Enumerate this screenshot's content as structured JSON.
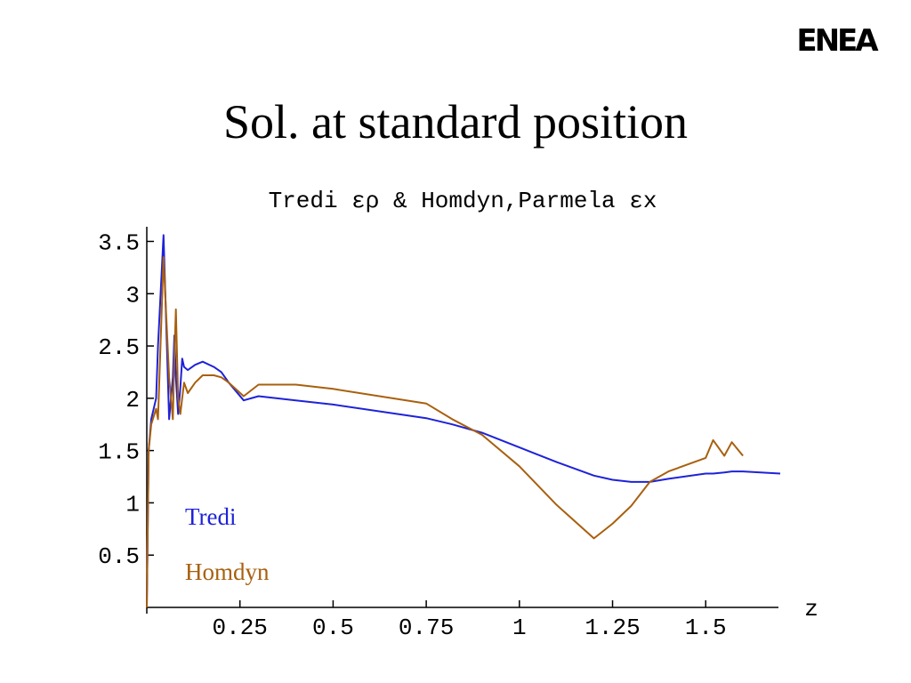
{
  "slide": {
    "title": "Sol. at standard position",
    "logo": "ENEA"
  },
  "chart_data": {
    "type": "line",
    "title": "Tredi ερ & Homdyn,Parmela εx",
    "x_label": "z",
    "x": [
      0,
      0.005,
      0.012,
      0.025,
      0.03,
      0.045,
      0.06,
      0.07,
      0.074,
      0.078,
      0.084,
      0.09,
      0.095,
      0.1,
      0.11,
      0.13,
      0.15,
      0.18,
      0.2,
      0.22,
      0.26,
      0.3,
      0.4,
      0.5,
      0.75,
      0.82,
      0.9,
      1.0,
      1.1,
      1.2,
      1.25,
      1.3,
      1.35,
      1.4,
      1.5,
      1.52,
      1.55,
      1.57,
      1.6,
      1.7
    ],
    "series": [
      {
        "name": "Tredi",
        "color": "#1e22d8",
        "values": [
          0,
          1.5,
          1.8,
          2.0,
          2.5,
          3.56,
          1.8,
          2.2,
          2.6,
          2.2,
          1.85,
          2.1,
          2.38,
          2.3,
          2.27,
          2.32,
          2.35,
          2.3,
          2.25,
          2.15,
          1.98,
          2.02,
          1.98,
          1.94,
          1.81,
          1.75,
          1.67,
          1.53,
          1.39,
          1.26,
          1.22,
          1.2,
          1.2,
          1.23,
          1.28,
          1.28,
          1.29,
          1.3,
          1.3,
          1.28
        ]
      },
      {
        "name": "Homdyn",
        "color": "#a8600e",
        "values": [
          0,
          1.5,
          1.75,
          1.9,
          1.8,
          3.35,
          2.2,
          1.8,
          2.4,
          2.85,
          2.0,
          1.85,
          2.0,
          2.15,
          2.05,
          2.15,
          2.22,
          2.22,
          2.2,
          2.15,
          2.02,
          2.13,
          2.13,
          2.09,
          1.95,
          1.8,
          1.65,
          1.35,
          0.98,
          0.66,
          0.8,
          0.97,
          1.2,
          1.3,
          1.43,
          1.6,
          1.45,
          1.58,
          1.45,
          null
        ]
      }
    ],
    "xlim": [
      0,
      1.7
    ],
    "xticks": [
      0.25,
      0.5,
      0.75,
      1,
      1.25,
      1.5
    ],
    "ylim": [
      0,
      3.64
    ],
    "yticks": [
      0.5,
      1,
      1.5,
      2,
      2.5,
      3,
      3.5
    ]
  }
}
